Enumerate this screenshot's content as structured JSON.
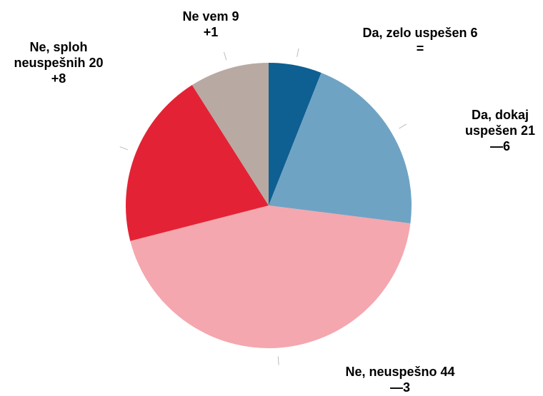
{
  "chart_data": {
    "type": "pie",
    "categories": [
      "Da, zelo uspešen",
      "Da, dokaj uspešen",
      "Ne, neuspešno",
      "Ne, sploh neuspešnih",
      "Ne vem"
    ],
    "values": [
      6,
      21,
      44,
      20,
      9
    ],
    "changes": [
      "=",
      "—6",
      "—3",
      "+8",
      "+1"
    ],
    "colors": [
      "#0e5f92",
      "#6fa3c4",
      "#f4a7ae",
      "#e32335",
      "#b8aaa3"
    ]
  }
}
